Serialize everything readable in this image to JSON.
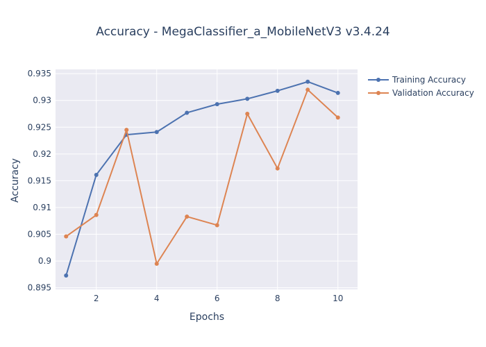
{
  "chart_data": {
    "type": "line",
    "title": "Accuracy - MegaClassifier_a_MobileNetV3 v3.4.24",
    "xlabel": "Epochs",
    "ylabel": "Accuracy",
    "xlim": [
      0.65,
      10.65
    ],
    "ylim": [
      0.8947,
      0.9358
    ],
    "xticks": [
      2,
      4,
      6,
      8,
      10
    ],
    "xtick_labels": [
      "2",
      "4",
      "6",
      "8",
      "10"
    ],
    "yticks": [
      0.895,
      0.9,
      0.905,
      0.91,
      0.915,
      0.92,
      0.925,
      0.93,
      0.935
    ],
    "ytick_labels": [
      "0.895",
      "0.9",
      "0.905",
      "0.91",
      "0.915",
      "0.92",
      "0.925",
      "0.93",
      "0.935"
    ],
    "grid": true,
    "legend_position": "top-right",
    "x": [
      1,
      2,
      3,
      4,
      5,
      6,
      7,
      8,
      9,
      10
    ],
    "series": [
      {
        "name": "Training Accuracy",
        "color": "#4c72b0",
        "values": [
          0.8973,
          0.9161,
          0.9236,
          0.9241,
          0.9277,
          0.9293,
          0.9303,
          0.9318,
          0.9335,
          0.9314
        ]
      },
      {
        "name": "Validation Accuracy",
        "color": "#dd8452",
        "values": [
          0.9046,
          0.9086,
          0.9245,
          0.8995,
          0.9083,
          0.9067,
          0.9275,
          0.9173,
          0.932,
          0.9268
        ]
      }
    ],
    "colors": {
      "plot_background": "#eaeaf2",
      "grid": "#ffffff",
      "text": "#2a3f5f"
    }
  }
}
